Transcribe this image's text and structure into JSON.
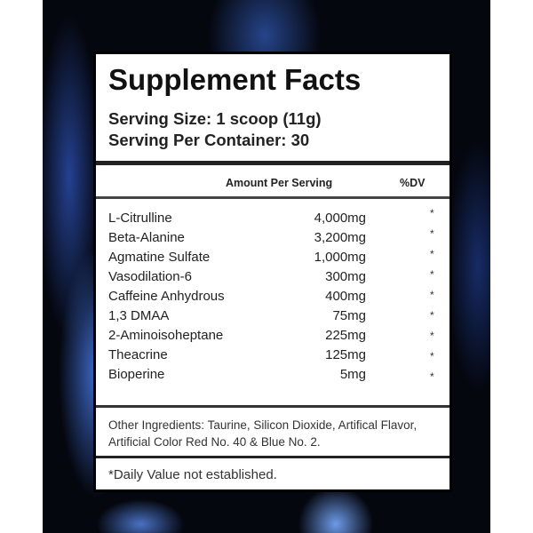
{
  "label": {
    "title": "Supplement Facts",
    "serving_size": "Serving Size: 1 scoop (11g)",
    "servings_per_container": "Serving Per Container: 30",
    "header_amount": "Amount Per Serving",
    "header_dv": "%DV",
    "ingredients": [
      {
        "name": "L-Citrulline",
        "amount": "4,000mg",
        "dv": "*"
      },
      {
        "name": "Beta-Alanine",
        "amount": "3,200mg",
        "dv": "*"
      },
      {
        "name": "Agmatine Sulfate",
        "amount": "1,000mg",
        "dv": "*"
      },
      {
        "name": "Vasodilation-6",
        "amount": "300mg",
        "dv": "*"
      },
      {
        "name": "Caffeine Anhydrous",
        "amount": "400mg",
        "dv": "*"
      },
      {
        "name": "1,3 DMAA",
        "amount": "75mg",
        "dv": "*"
      },
      {
        "name": "2-Aminoisoheptane",
        "amount": "225mg",
        "dv": "*"
      },
      {
        "name": "Theacrine",
        "amount": "125mg",
        "dv": "*"
      },
      {
        "name": "Bioperine",
        "amount": "5mg",
        "dv": "*"
      }
    ],
    "other_ingredients": "Other Ingredients: Taurine, Silicon Dioxide, Artifical Flavor, Artificial Color Red No. 40 & Blue No. 2.",
    "footnote": "*Daily Value not established."
  }
}
